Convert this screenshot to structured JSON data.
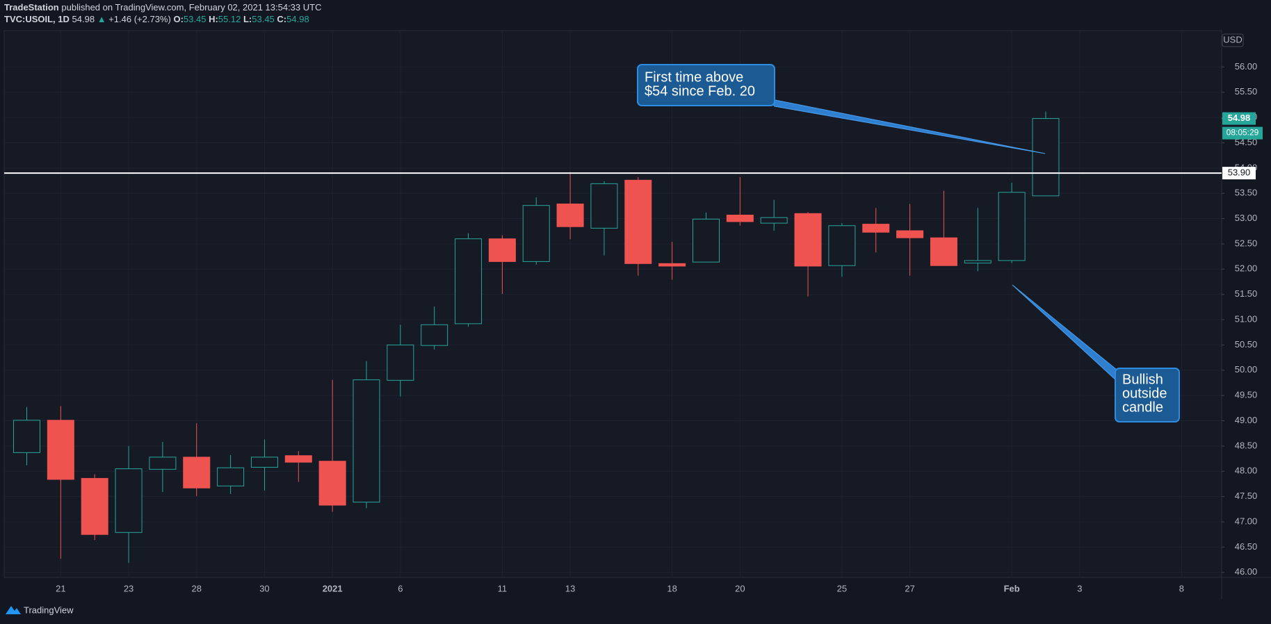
{
  "header": {
    "publisher": "TradeStation",
    "published": "published on TradingView.com, February 02, 2021 13:54:33 UTC",
    "symbol": "TVC:USOIL, 1D",
    "last": "54.98",
    "change": "+1.46 (+2.73%)",
    "ohlc": [
      {
        "label": "O:",
        "value": "53.45"
      },
      {
        "label": "H:",
        "value": "55.12"
      },
      {
        "label": "L:",
        "value": "53.45"
      },
      {
        "label": "C:",
        "value": "54.98"
      }
    ]
  },
  "chart_data": {
    "type": "candlestick",
    "categories": [
      null,
      "21",
      null,
      "23",
      null,
      "28",
      null,
      "30",
      null,
      "2021",
      null,
      "6",
      null,
      null,
      "11",
      null,
      "13",
      null,
      null,
      "18",
      null,
      "20",
      null,
      null,
      "25",
      null,
      "27",
      null,
      null,
      "Feb",
      null,
      "3",
      null,
      null,
      "8"
    ],
    "open": [
      48.37,
      49.01,
      47.86,
      46.79,
      48.04,
      48.28,
      47.71,
      48.08,
      48.31,
      48.2,
      47.39,
      49.8,
      50.49,
      50.92,
      52.6,
      52.15,
      53.29,
      52.81,
      53.76,
      52.11,
      52.14,
      53.07,
      52.91,
      53.1,
      52.07,
      52.89,
      52.76,
      52.62,
      52.12,
      52.17,
      53.45,
      null,
      null,
      null,
      null
    ],
    "high": [
      49.27,
      49.29,
      47.94,
      48.5,
      48.58,
      48.95,
      48.32,
      48.63,
      48.4,
      49.81,
      50.18,
      50.9,
      51.26,
      52.71,
      52.67,
      53.42,
      53.92,
      53.74,
      53.82,
      52.54,
      53.12,
      53.82,
      53.37,
      53.13,
      52.91,
      53.21,
      53.29,
      53.55,
      53.21,
      53.71,
      55.12,
      null,
      null,
      null,
      null
    ],
    "low": [
      48.12,
      46.27,
      46.64,
      46.19,
      47.59,
      47.51,
      47.55,
      47.62,
      47.79,
      47.2,
      47.27,
      49.48,
      50.41,
      50.86,
      51.51,
      52.09,
      52.59,
      52.27,
      51.87,
      51.79,
      52.14,
      52.86,
      52.76,
      51.46,
      51.85,
      52.33,
      51.87,
      52.07,
      51.96,
      52.12,
      53.45,
      null,
      null,
      null,
      null
    ],
    "close": [
      49.01,
      47.84,
      46.75,
      48.05,
      48.28,
      47.67,
      48.07,
      48.28,
      48.18,
      47.33,
      49.81,
      50.5,
      50.9,
      52.6,
      52.15,
      53.26,
      52.84,
      53.69,
      52.11,
      52.06,
      52.99,
      52.94,
      53.02,
      52.06,
      52.86,
      52.73,
      52.62,
      52.07,
      52.17,
      53.52,
      54.98,
      null,
      null,
      null,
      null
    ],
    "up_color": "#26a69a",
    "down_color": "#ef5350",
    "ylim": [
      45.9,
      56.72
    ],
    "yticks": [
      {
        "value": 46,
        "label": "46.00"
      },
      {
        "value": 46.5,
        "label": "46.50"
      },
      {
        "value": 47,
        "label": "47.00"
      },
      {
        "value": 47.5,
        "label": "47.50"
      },
      {
        "value": 48,
        "label": "48.00"
      },
      {
        "value": 48.5,
        "label": "48.50"
      },
      {
        "value": 49,
        "label": "49.00"
      },
      {
        "value": 49.5,
        "label": "49.50"
      },
      {
        "value": 50,
        "label": "50.00"
      },
      {
        "value": 50.5,
        "label": "50.50"
      },
      {
        "value": 51,
        "label": "51.00"
      },
      {
        "value": 51.5,
        "label": "51.50"
      },
      {
        "value": 52,
        "label": "52.00"
      },
      {
        "value": 52.5,
        "label": "52.50"
      },
      {
        "value": 53,
        "label": "53.00"
      },
      {
        "value": 53.5,
        "label": "53.50"
      },
      {
        "value": 54,
        "label": "54.00"
      },
      {
        "value": 54.5,
        "label": "54.50"
      },
      {
        "value": 55,
        "label": "55.00"
      },
      {
        "value": 55.5,
        "label": "55.50"
      },
      {
        "value": 56,
        "label": "56.00"
      }
    ],
    "grid": true,
    "hline": {
      "value": 53.9,
      "label": "53.90"
    },
    "countdown": "08:05:29",
    "currency": "USD",
    "annotations": [
      {
        "lines": [
          "First time above",
          "$54 since Feb. 20"
        ]
      },
      {
        "lines": [
          "Bullish",
          "outside",
          "candle"
        ]
      }
    ]
  },
  "footer": {
    "brand": "TradingView"
  }
}
